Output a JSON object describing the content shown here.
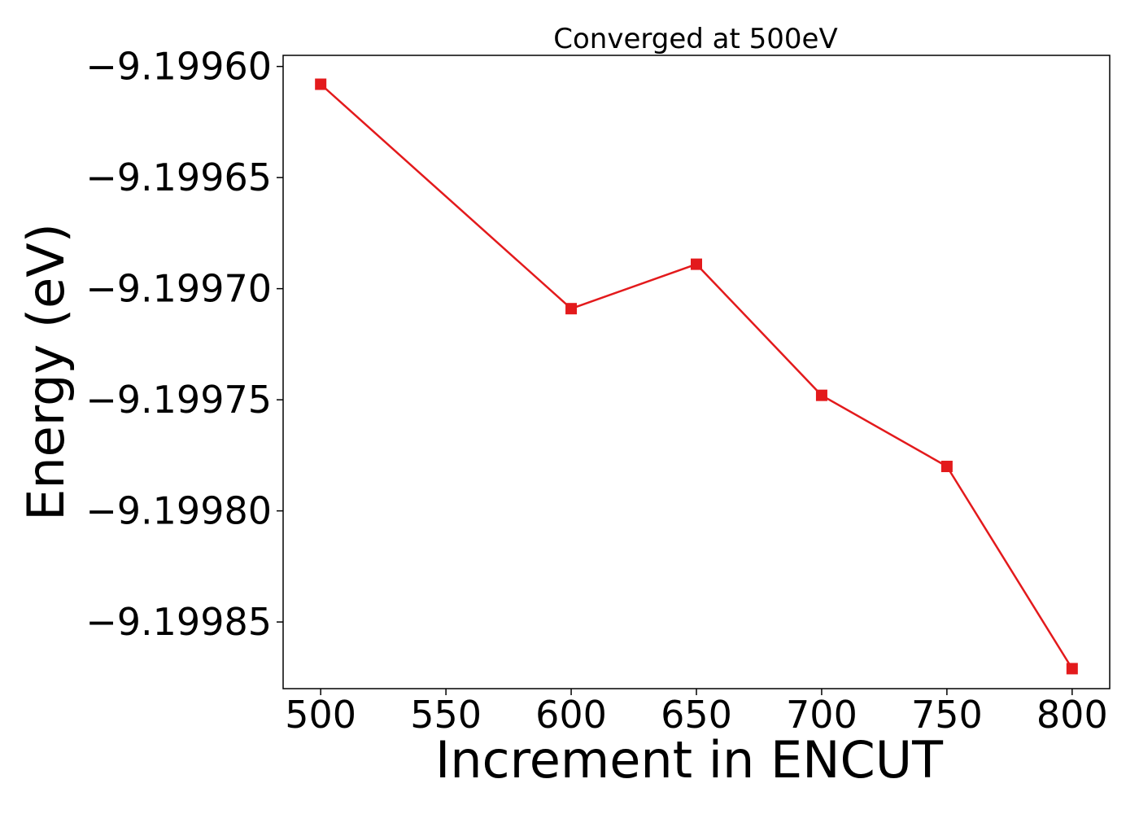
{
  "chart_data": {
    "type": "line",
    "title": "Converged at 500eV",
    "xlabel": "Increment in ENCUT",
    "ylabel": "Energy (eV)",
    "x": [
      500,
      600,
      650,
      700,
      750,
      800
    ],
    "series": [
      {
        "values": [
          -9.199608,
          -9.199709,
          -9.199689,
          -9.199748,
          -9.19978,
          -9.199871
        ],
        "color": "#e31a1c",
        "marker": "square"
      }
    ],
    "xlim": [
      485,
      815
    ],
    "ylim": [
      -9.19988,
      -9.199595
    ],
    "xticks": [
      500,
      550,
      600,
      650,
      700,
      750,
      800
    ],
    "xtick_labels": [
      "500",
      "550",
      "600",
      "650",
      "700",
      "750",
      "800"
    ],
    "yticks": [
      -9.1996,
      -9.19965,
      -9.1997,
      -9.19975,
      -9.1998,
      -9.19985
    ],
    "ytick_labels": [
      "−9.19960",
      "−9.19965",
      "−9.19970",
      "−9.19975",
      "−9.19980",
      "−9.19985"
    ],
    "grid": false,
    "legend": "none"
  }
}
